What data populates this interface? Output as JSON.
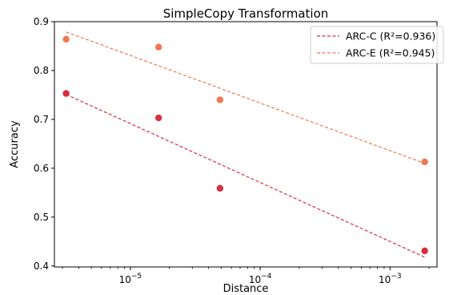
{
  "chart_data": {
    "type": "scatter",
    "title": "SimpleCopy Transformation",
    "xlabel": "Distance",
    "ylabel": "Accuracy",
    "xscale": "log",
    "xlim": [
      2.6e-06,
      0.0023
    ],
    "ylim": [
      0.398,
      0.9
    ],
    "grid": false,
    "legend_position": "top-right",
    "y_ticks": [
      0.4,
      0.5,
      0.6,
      0.7,
      0.8,
      0.9
    ],
    "y_tick_labels": [
      "0.4",
      "0.5",
      "0.6",
      "0.7",
      "0.8",
      "0.9"
    ],
    "x_ticks": [
      1e-05,
      0.0001,
      0.001
    ],
    "x_tick_labels": [
      {
        "base": "10",
        "exp": "−5"
      },
      {
        "base": "10",
        "exp": "−4"
      },
      {
        "base": "10",
        "exp": "−3"
      }
    ],
    "series": [
      {
        "name": "ARC-C",
        "color": "#d62f3f",
        "x": [
          3.2e-06,
          1.65e-05,
          4.9e-05,
          0.00185
        ],
        "y": [
          0.753,
          0.703,
          0.559,
          0.431
        ],
        "fit": {
          "label": "ARC-C (R²=0.936)",
          "x": [
            3.2e-06,
            0.00185
          ],
          "y": [
            0.751,
            0.418
          ]
        }
      },
      {
        "name": "ARC-E",
        "color": "#f07850",
        "x": [
          3.2e-06,
          1.65e-05,
          4.9e-05,
          0.00185
        ],
        "y": [
          0.864,
          0.848,
          0.74,
          0.613
        ],
        "fit": {
          "label": "ARC-E (R²=0.945)",
          "x": [
            3.2e-06,
            0.00185
          ],
          "y": [
            0.879,
            0.61
          ]
        }
      }
    ]
  }
}
